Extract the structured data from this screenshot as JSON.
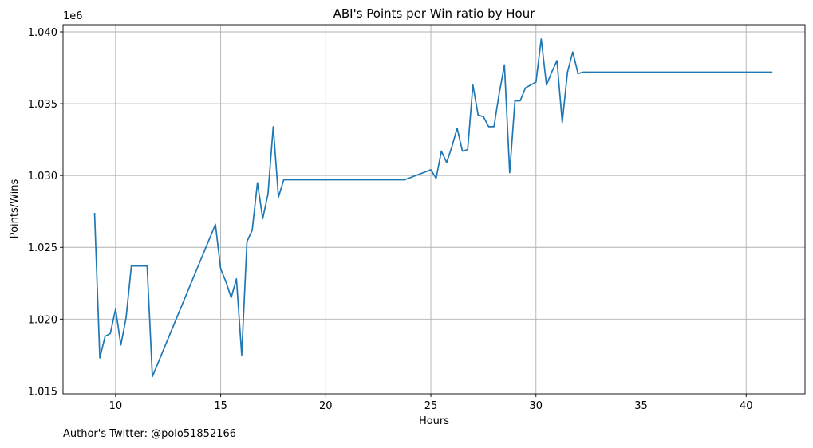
{
  "chart_data": {
    "type": "line",
    "title": "ABI's Points per Win ratio by Hour",
    "xlabel": "Hours",
    "ylabel": "Points/Wins",
    "y_offset_label": "1e6",
    "xlim": [
      7.5,
      42.8
    ],
    "ylim": [
      1.0148,
      1.0405
    ],
    "y_scale_factor": 1000000,
    "x_ticks": [
      10,
      15,
      20,
      25,
      30,
      35,
      40
    ],
    "x_tick_labels": [
      "10",
      "15",
      "20",
      "25",
      "30",
      "35",
      "40"
    ],
    "y_ticks": [
      1.015,
      1.02,
      1.025,
      1.03,
      1.035,
      1.04
    ],
    "y_tick_labels": [
      "1.015",
      "1.020",
      "1.025",
      "1.030",
      "1.035",
      "1.040"
    ],
    "grid": true,
    "series": [
      {
        "color": "#1f77b4",
        "x": [
          9.0,
          9.25,
          9.5,
          9.75,
          10.0,
          10.25,
          10.5,
          10.75,
          11.0,
          11.25,
          11.5,
          11.75,
          14.75,
          15.0,
          15.25,
          15.5,
          15.75,
          16.0,
          16.25,
          16.5,
          16.75,
          17.0,
          17.25,
          17.5,
          17.75,
          18.0,
          23.75,
          25.0,
          25.25,
          25.5,
          25.75,
          26.0,
          26.25,
          26.5,
          26.75,
          27.0,
          27.25,
          27.5,
          27.75,
          28.0,
          28.25,
          28.5,
          28.75,
          29.0,
          29.25,
          29.5,
          29.75,
          30.0,
          30.25,
          30.5,
          30.75,
          31.0,
          31.25,
          31.5,
          31.75,
          32.0,
          32.25,
          34.75,
          35.0,
          41.25
        ],
        "y": [
          1.0274,
          1.0173,
          1.0188,
          1.019,
          1.0207,
          1.0182,
          1.0201,
          1.0237,
          1.0237,
          1.0237,
          1.0237,
          1.016,
          1.0266,
          1.0235,
          1.0226,
          1.0215,
          1.0228,
          1.0175,
          1.0254,
          1.0262,
          1.0295,
          1.027,
          1.0287,
          1.0334,
          1.0285,
          1.0297,
          1.0297,
          1.0304,
          1.0298,
          1.0317,
          1.0309,
          1.032,
          1.0333,
          1.0317,
          1.0318,
          1.0363,
          1.0342,
          1.0341,
          1.0334,
          1.0334,
          1.0357,
          1.0377,
          1.0302,
          1.0352,
          1.0352,
          1.0361,
          1.0363,
          1.0365,
          1.0395,
          1.0363,
          1.0372,
          1.038,
          1.0337,
          1.0372,
          1.0386,
          1.0371,
          1.0372,
          1.0372,
          1.0372,
          1.0372
        ]
      }
    ]
  },
  "footer": {
    "text": "Author's Twitter: @polo51852166"
  }
}
